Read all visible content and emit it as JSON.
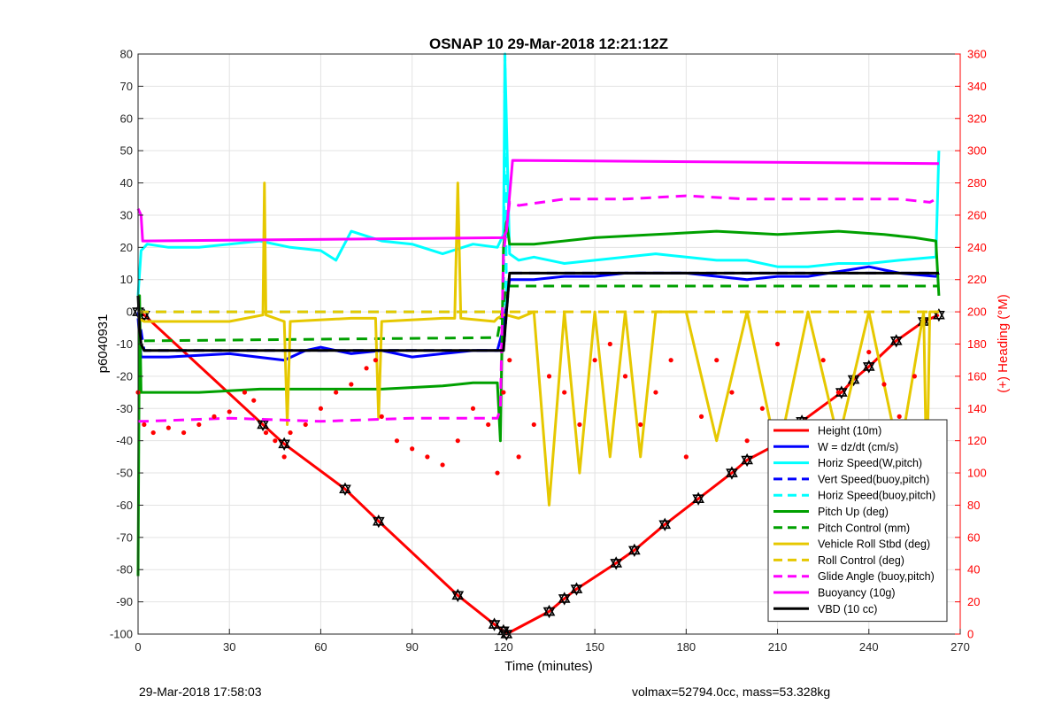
{
  "chart_data": {
    "type": "line",
    "title": "OSNAP 10 29-Mar-2018 12:21:12Z",
    "xlabel": "Time (minutes)",
    "ylabel": "p6040931",
    "y2label": "(+) Heading (°M)",
    "xlim": [
      0,
      270
    ],
    "ylim": [
      -100,
      80
    ],
    "y2lim": [
      0,
      360
    ],
    "xticks": [
      "0",
      "30",
      "60",
      "90",
      "120",
      "150",
      "180",
      "210",
      "240",
      "270"
    ],
    "yticks": [
      "-100",
      "-90",
      "-80",
      "-70",
      "-60",
      "-50",
      "-40",
      "-30",
      "-20",
      "-10",
      "0",
      "10",
      "20",
      "30",
      "40",
      "50",
      "60",
      "70",
      "80"
    ],
    "y2ticks": [
      "0",
      "20",
      "40",
      "60",
      "80",
      "100",
      "120",
      "140",
      "160",
      "180",
      "200",
      "220",
      "240",
      "260",
      "280",
      "300",
      "320",
      "340",
      "360"
    ],
    "grid": true,
    "legend_position": "bottom-right",
    "colors": {
      "red": "#ff0000",
      "blue": "#0000ff",
      "cyan": "#00ffff",
      "green": "#00a000",
      "yellow": "#e6c800",
      "magenta": "#ff00ff",
      "black": "#000000"
    },
    "legend": [
      {
        "label": "Height (10m)",
        "color": "#ff0000",
        "dash": false
      },
      {
        "label": "W = dz/dt (cm/s)",
        "color": "#0000ff",
        "dash": false
      },
      {
        "label": "Horiz Speed(W,pitch)",
        "color": "#00ffff",
        "dash": false
      },
      {
        "label": "Vert Speed(buoy,pitch)",
        "color": "#0000ff",
        "dash": true
      },
      {
        "label": "Horiz Speed(buoy,pitch)",
        "color": "#00ffff",
        "dash": true
      },
      {
        "label": "Pitch Up (deg)",
        "color": "#00a000",
        "dash": false
      },
      {
        "label": "Pitch Control (mm)",
        "color": "#00a000",
        "dash": true
      },
      {
        "label": "Vehicle Roll Stbd (deg)",
        "color": "#e6c800",
        "dash": false
      },
      {
        "label": "Roll Control (deg)",
        "color": "#e6c800",
        "dash": true
      },
      {
        "label": "Glide Angle (buoy,pitch)",
        "color": "#ff00ff",
        "dash": true
      },
      {
        "label": "Buoyancy (10g)",
        "color": "#ff00ff",
        "dash": false
      },
      {
        "label": "VBD (10 cc)",
        "color": "#000000",
        "dash": false
      }
    ],
    "series": [
      {
        "name": "Height (10m)",
        "color": "#ff0000",
        "dash": false,
        "markers": true,
        "x": [
          0,
          2,
          41,
          48,
          68,
          79,
          105,
          117,
          120,
          121,
          135,
          140,
          144,
          157,
          163,
          173,
          184,
          195,
          200,
          210,
          218,
          231,
          235,
          240,
          249,
          258,
          263
        ],
        "y": [
          0,
          -1,
          -35,
          -41,
          -55,
          -65,
          -88,
          -97,
          -99,
          -100,
          -93,
          -89,
          -86,
          -78,
          -74,
          -66,
          -58,
          -50,
          -46,
          -41,
          -34,
          -25,
          -21,
          -17,
          -9,
          -3,
          -1
        ]
      },
      {
        "name": "W = dz/dt (cm/s)",
        "color": "#0000ff",
        "dash": false,
        "x": [
          0,
          1,
          2,
          10,
          30,
          48,
          55,
          60,
          70,
          80,
          90,
          100,
          110,
          118,
          120,
          122,
          125,
          130,
          140,
          150,
          160,
          170,
          180,
          200,
          210,
          220,
          240,
          250,
          262,
          263
        ],
        "y": [
          -2,
          -14,
          -14,
          -14,
          -13,
          -15,
          -12,
          -11,
          -13,
          -12,
          -14,
          -13,
          -12,
          -12,
          -5,
          10,
          10,
          10,
          11,
          11,
          12,
          12,
          12,
          10,
          11,
          11,
          14,
          12,
          11,
          12
        ]
      },
      {
        "name": "Horiz Speed(W,pitch)",
        "color": "#00ffff",
        "dash": false,
        "x": [
          0,
          1,
          3,
          10,
          20,
          30,
          40,
          50,
          60,
          65,
          70,
          80,
          90,
          100,
          110,
          118,
          120,
          120.5,
          122,
          125,
          130,
          140,
          150,
          160,
          170,
          180,
          190,
          200,
          210,
          220,
          230,
          240,
          250,
          262,
          263
        ],
        "y": [
          5,
          19,
          21,
          20,
          20,
          21,
          22,
          20,
          19,
          16,
          25,
          22,
          21,
          18,
          21,
          20,
          24,
          78,
          18,
          16,
          17,
          15,
          16,
          17,
          18,
          17,
          16,
          16,
          14,
          14,
          15,
          15,
          16,
          17,
          50
        ]
      },
      {
        "name": "Vert Speed(buoy,pitch)",
        "color": "#0000ff",
        "dash": true,
        "x": [
          0,
          2,
          118,
          120,
          122,
          263
        ],
        "y": [
          0,
          -12,
          -12,
          -12,
          12,
          12
        ]
      },
      {
        "name": "Horiz Speed(buoy,pitch)",
        "color": "#00ffff",
        "dash": true,
        "x": [
          0,
          2,
          118,
          119,
          120,
          120.5,
          121,
          122
        ],
        "y": [
          0,
          0,
          0,
          0,
          0,
          80,
          0,
          0
        ]
      },
      {
        "name": "Pitch Up (deg)",
        "color": "#00a000",
        "dash": false,
        "x": [
          0,
          0.5,
          1,
          2,
          20,
          40,
          60,
          80,
          100,
          110,
          118,
          119,
          120,
          121,
          122,
          130,
          150,
          170,
          190,
          210,
          230,
          245,
          255,
          262,
          263
        ],
        "y": [
          -82,
          5,
          -25,
          -25,
          -25,
          -24,
          -24,
          -24,
          -23,
          -22,
          -22,
          -40,
          20,
          28,
          21,
          21,
          23,
          24,
          25,
          24,
          25,
          24,
          23,
          22,
          5
        ]
      },
      {
        "name": "Pitch Control (mm)",
        "color": "#00a000",
        "dash": true,
        "x": [
          2,
          118,
          121,
          263
        ],
        "y": [
          -9,
          -8,
          8,
          8
        ]
      },
      {
        "name": "Vehicle Roll Stbd (deg)",
        "color": "#e6c800",
        "dash": false,
        "x": [
          0,
          2,
          30,
          41,
          41.5,
          42,
          48,
          49,
          50,
          70,
          78,
          79,
          80,
          100,
          104,
          105,
          106,
          117,
          118,
          120,
          121,
          125,
          130,
          135,
          140,
          145,
          150,
          155,
          160,
          165,
          170,
          180,
          190,
          200,
          210,
          220,
          230,
          240,
          250,
          258,
          259,
          260,
          263
        ],
        "y": [
          -2,
          -3,
          -3,
          -1,
          40,
          -1,
          -3,
          -35,
          -3,
          -2,
          -2,
          -33,
          -3,
          -2,
          -2,
          40,
          -2,
          -3,
          -2,
          -1,
          -1,
          -2,
          0,
          -60,
          0,
          -50,
          0,
          -45,
          0,
          -45,
          0,
          0,
          -40,
          0,
          -45,
          0,
          -40,
          0,
          -45,
          0,
          -55,
          0,
          0
        ]
      },
      {
        "name": "Roll Control (deg)",
        "color": "#e6c800",
        "dash": true,
        "x": [
          0,
          263
        ],
        "y": [
          0,
          0
        ]
      },
      {
        "name": "Glide Angle (buoy,pitch)",
        "color": "#ff00ff",
        "dash": true,
        "x": [
          0,
          2,
          30,
          60,
          90,
          118,
          119,
          120,
          122,
          125,
          140,
          160,
          180,
          200,
          220,
          240,
          250,
          260,
          262
        ],
        "y": [
          -34,
          -34,
          -33,
          -34,
          -33,
          -33,
          -30,
          18,
          34,
          33,
          35,
          35,
          36,
          35,
          35,
          35,
          35,
          34,
          35
        ]
      },
      {
        "name": "Buoyancy (10g)",
        "color": "#ff00ff",
        "dash": false,
        "x": [
          0,
          1,
          1.5,
          120,
          121,
          123,
          263
        ],
        "y": [
          32,
          30,
          22,
          23,
          25,
          47,
          46
        ]
      },
      {
        "name": "VBD (10 cc)",
        "color": "#000000",
        "dash": false,
        "x": [
          0,
          0.5,
          1,
          2,
          120,
          121,
          122,
          263
        ],
        "y": [
          5,
          -5,
          -10,
          -12,
          -12,
          0,
          12,
          12
        ]
      },
      {
        "name": "Heading",
        "axis": "right",
        "color": "#ff0000",
        "markers": "dots",
        "x": [
          0,
          2,
          5,
          10,
          15,
          20,
          25,
          30,
          35,
          38,
          42,
          45,
          48,
          50,
          55,
          60,
          65,
          70,
          75,
          78,
          80,
          85,
          90,
          95,
          100,
          105,
          110,
          115,
          118,
          120,
          122,
          125,
          130,
          135,
          140,
          145,
          150,
          155,
          160,
          165,
          170,
          175,
          180,
          185,
          190,
          195,
          200,
          205,
          210,
          215,
          220,
          225,
          230,
          235,
          240,
          245,
          250,
          255,
          260,
          262
        ],
        "y": [
          150,
          130,
          125,
          128,
          125,
          130,
          135,
          138,
          150,
          145,
          125,
          120,
          110,
          125,
          130,
          140,
          150,
          155,
          165,
          170,
          135,
          120,
          115,
          110,
          105,
          120,
          140,
          130,
          100,
          150,
          170,
          110,
          130,
          160,
          150,
          130,
          170,
          180,
          160,
          130,
          150,
          170,
          110,
          135,
          170,
          150,
          120,
          140,
          180,
          120,
          130,
          170,
          150,
          130,
          175,
          155,
          135,
          160,
          105,
          100
        ]
      }
    ],
    "footer_left": "29-Mar-2018 17:58:03",
    "footer_right": "volmax=52794.0cc, mass=53.328kg"
  }
}
